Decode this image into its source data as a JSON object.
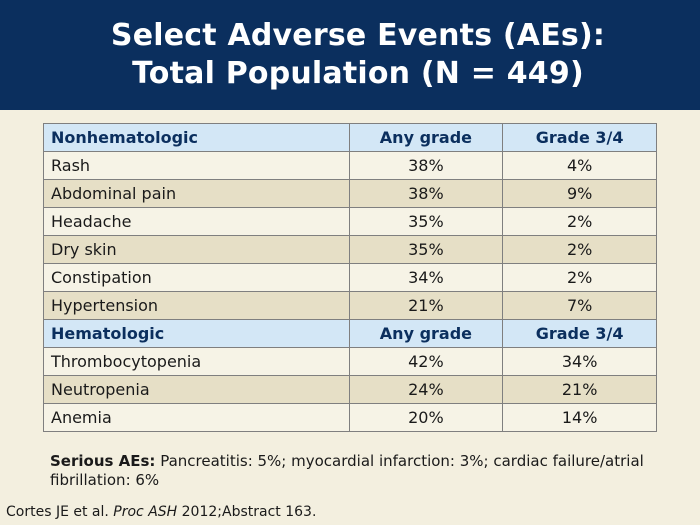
{
  "title": {
    "line1": "Select Adverse Events (AEs):",
    "line2": "Total Population (N = 449)"
  },
  "table": {
    "sections": [
      {
        "header": [
          "Nonhematologic",
          "Any grade",
          "Grade 3/4"
        ],
        "rows": [
          [
            "Rash",
            "38%",
            "4%"
          ],
          [
            "Abdominal pain",
            "38%",
            "9%"
          ],
          [
            "Headache",
            "35%",
            "2%"
          ],
          [
            "Dry skin",
            "35%",
            "2%"
          ],
          [
            "Constipation",
            "34%",
            "2%"
          ],
          [
            "Hypertension",
            "21%",
            "7%"
          ]
        ]
      },
      {
        "header": [
          "Hematologic",
          "Any grade",
          "Grade 3/4"
        ],
        "rows": [
          [
            "Thrombocytopenia",
            "42%",
            "34%"
          ],
          [
            "Neutropenia",
            "24%",
            "21%"
          ],
          [
            "Anemia",
            "20%",
            "14%"
          ]
        ]
      }
    ]
  },
  "note": {
    "label": "Serious AEs:",
    "text": " Pancreatitis: 5%; myocardial infarction: 3%; cardiac failure/atrial fibrillation: 6%"
  },
  "citation": {
    "prefix": "Cortes JE et al. ",
    "journal": "Proc ASH",
    "suffix": " 2012;Abstract 163."
  },
  "colors": {
    "header_bg": "#0b2f5e",
    "section_row_bg": "#d3e7f6",
    "row_light": "#f6f3e6",
    "row_dark": "#e6dfc6",
    "page_bg": "#f3efdf"
  }
}
